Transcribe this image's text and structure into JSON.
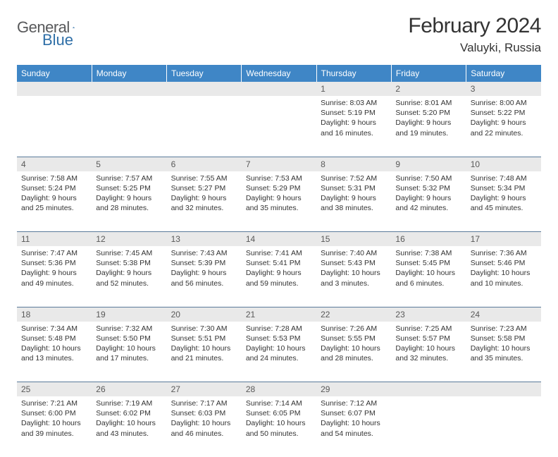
{
  "brand": {
    "word1": "General",
    "word2": "Blue"
  },
  "title": "February 2024",
  "location": "Valuyki, Russia",
  "colors": {
    "header_bg": "#3f86c6",
    "header_text": "#ffffff",
    "daynum_bg": "#e9e9e9",
    "rule": "#5a7a9a",
    "brand_gray": "#58595b",
    "brand_blue": "#2f6fa7"
  },
  "weekdays": [
    "Sunday",
    "Monday",
    "Tuesday",
    "Wednesday",
    "Thursday",
    "Friday",
    "Saturday"
  ],
  "weeks": [
    [
      null,
      null,
      null,
      null,
      {
        "n": "1",
        "sunrise": "8:03 AM",
        "sunset": "5:19 PM",
        "daylight": "9 hours and 16 minutes."
      },
      {
        "n": "2",
        "sunrise": "8:01 AM",
        "sunset": "5:20 PM",
        "daylight": "9 hours and 19 minutes."
      },
      {
        "n": "3",
        "sunrise": "8:00 AM",
        "sunset": "5:22 PM",
        "daylight": "9 hours and 22 minutes."
      }
    ],
    [
      {
        "n": "4",
        "sunrise": "7:58 AM",
        "sunset": "5:24 PM",
        "daylight": "9 hours and 25 minutes."
      },
      {
        "n": "5",
        "sunrise": "7:57 AM",
        "sunset": "5:25 PM",
        "daylight": "9 hours and 28 minutes."
      },
      {
        "n": "6",
        "sunrise": "7:55 AM",
        "sunset": "5:27 PM",
        "daylight": "9 hours and 32 minutes."
      },
      {
        "n": "7",
        "sunrise": "7:53 AM",
        "sunset": "5:29 PM",
        "daylight": "9 hours and 35 minutes."
      },
      {
        "n": "8",
        "sunrise": "7:52 AM",
        "sunset": "5:31 PM",
        "daylight": "9 hours and 38 minutes."
      },
      {
        "n": "9",
        "sunrise": "7:50 AM",
        "sunset": "5:32 PM",
        "daylight": "9 hours and 42 minutes."
      },
      {
        "n": "10",
        "sunrise": "7:48 AM",
        "sunset": "5:34 PM",
        "daylight": "9 hours and 45 minutes."
      }
    ],
    [
      {
        "n": "11",
        "sunrise": "7:47 AM",
        "sunset": "5:36 PM",
        "daylight": "9 hours and 49 minutes."
      },
      {
        "n": "12",
        "sunrise": "7:45 AM",
        "sunset": "5:38 PM",
        "daylight": "9 hours and 52 minutes."
      },
      {
        "n": "13",
        "sunrise": "7:43 AM",
        "sunset": "5:39 PM",
        "daylight": "9 hours and 56 minutes."
      },
      {
        "n": "14",
        "sunrise": "7:41 AM",
        "sunset": "5:41 PM",
        "daylight": "9 hours and 59 minutes."
      },
      {
        "n": "15",
        "sunrise": "7:40 AM",
        "sunset": "5:43 PM",
        "daylight": "10 hours and 3 minutes."
      },
      {
        "n": "16",
        "sunrise": "7:38 AM",
        "sunset": "5:45 PM",
        "daylight": "10 hours and 6 minutes."
      },
      {
        "n": "17",
        "sunrise": "7:36 AM",
        "sunset": "5:46 PM",
        "daylight": "10 hours and 10 minutes."
      }
    ],
    [
      {
        "n": "18",
        "sunrise": "7:34 AM",
        "sunset": "5:48 PM",
        "daylight": "10 hours and 13 minutes."
      },
      {
        "n": "19",
        "sunrise": "7:32 AM",
        "sunset": "5:50 PM",
        "daylight": "10 hours and 17 minutes."
      },
      {
        "n": "20",
        "sunrise": "7:30 AM",
        "sunset": "5:51 PM",
        "daylight": "10 hours and 21 minutes."
      },
      {
        "n": "21",
        "sunrise": "7:28 AM",
        "sunset": "5:53 PM",
        "daylight": "10 hours and 24 minutes."
      },
      {
        "n": "22",
        "sunrise": "7:26 AM",
        "sunset": "5:55 PM",
        "daylight": "10 hours and 28 minutes."
      },
      {
        "n": "23",
        "sunrise": "7:25 AM",
        "sunset": "5:57 PM",
        "daylight": "10 hours and 32 minutes."
      },
      {
        "n": "24",
        "sunrise": "7:23 AM",
        "sunset": "5:58 PM",
        "daylight": "10 hours and 35 minutes."
      }
    ],
    [
      {
        "n": "25",
        "sunrise": "7:21 AM",
        "sunset": "6:00 PM",
        "daylight": "10 hours and 39 minutes."
      },
      {
        "n": "26",
        "sunrise": "7:19 AM",
        "sunset": "6:02 PM",
        "daylight": "10 hours and 43 minutes."
      },
      {
        "n": "27",
        "sunrise": "7:17 AM",
        "sunset": "6:03 PM",
        "daylight": "10 hours and 46 minutes."
      },
      {
        "n": "28",
        "sunrise": "7:14 AM",
        "sunset": "6:05 PM",
        "daylight": "10 hours and 50 minutes."
      },
      {
        "n": "29",
        "sunrise": "7:12 AM",
        "sunset": "6:07 PM",
        "daylight": "10 hours and 54 minutes."
      },
      null,
      null
    ]
  ],
  "labels": {
    "sunrise": "Sunrise:",
    "sunset": "Sunset:",
    "daylight": "Daylight:"
  }
}
